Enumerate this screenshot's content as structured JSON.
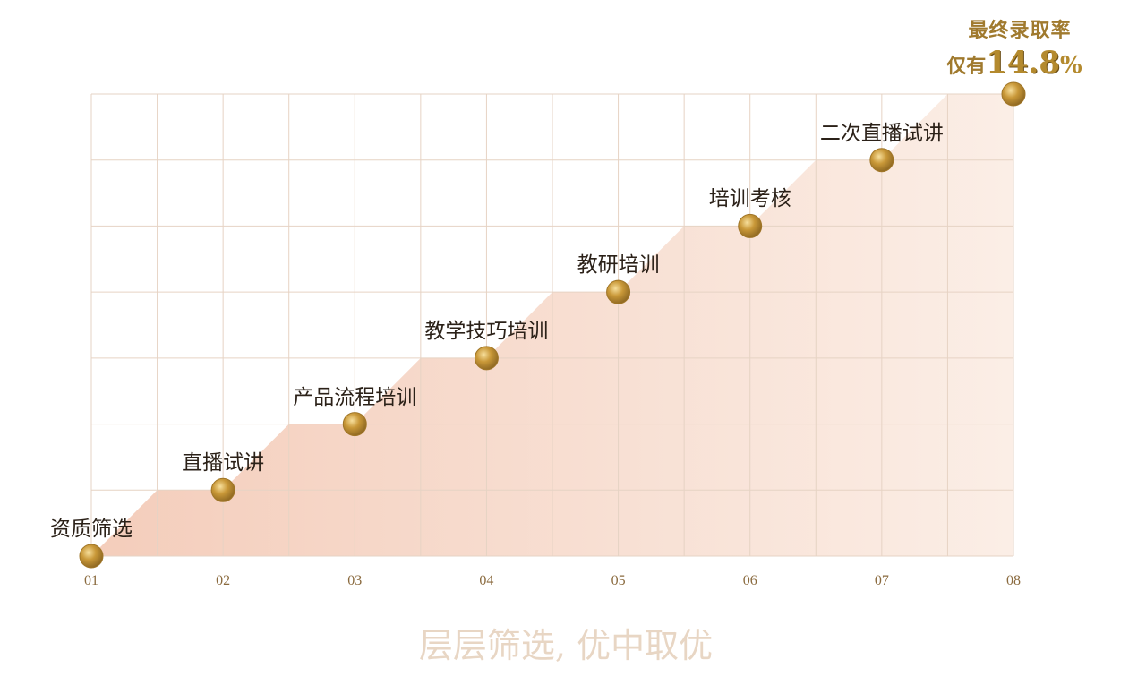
{
  "chart_data": {
    "type": "area",
    "x": [
      "01",
      "02",
      "03",
      "04",
      "05",
      "06",
      "07",
      "08"
    ],
    "points": [
      {
        "x": "01",
        "y": 0,
        "label": "资质筛选"
      },
      {
        "x": "02",
        "y": 1,
        "label": "直播试讲"
      },
      {
        "x": "03",
        "y": 2,
        "label": "产品流程培训"
      },
      {
        "x": "04",
        "y": 3,
        "label": "教学技巧培训"
      },
      {
        "x": "05",
        "y": 4,
        "label": "教研培训"
      },
      {
        "x": "06",
        "y": 5,
        "label": "培训考核"
      },
      {
        "x": "07",
        "y": 6,
        "label": "二次直播试讲"
      },
      {
        "x": "08",
        "y": 7,
        "label": ""
      }
    ],
    "ylim": [
      0,
      7
    ],
    "grid": true,
    "shape": "staircase",
    "colors": {
      "fill": "#f6d3c3",
      "grid": "#e6d3c4",
      "marker": "#b8872e",
      "tick_text": "#8a6a3e"
    }
  },
  "callout": {
    "line1": "最终录取率",
    "line2_prefix": "仅有",
    "value": "14.8",
    "unit": "%"
  },
  "slogan": "层层筛选, 优中取优"
}
